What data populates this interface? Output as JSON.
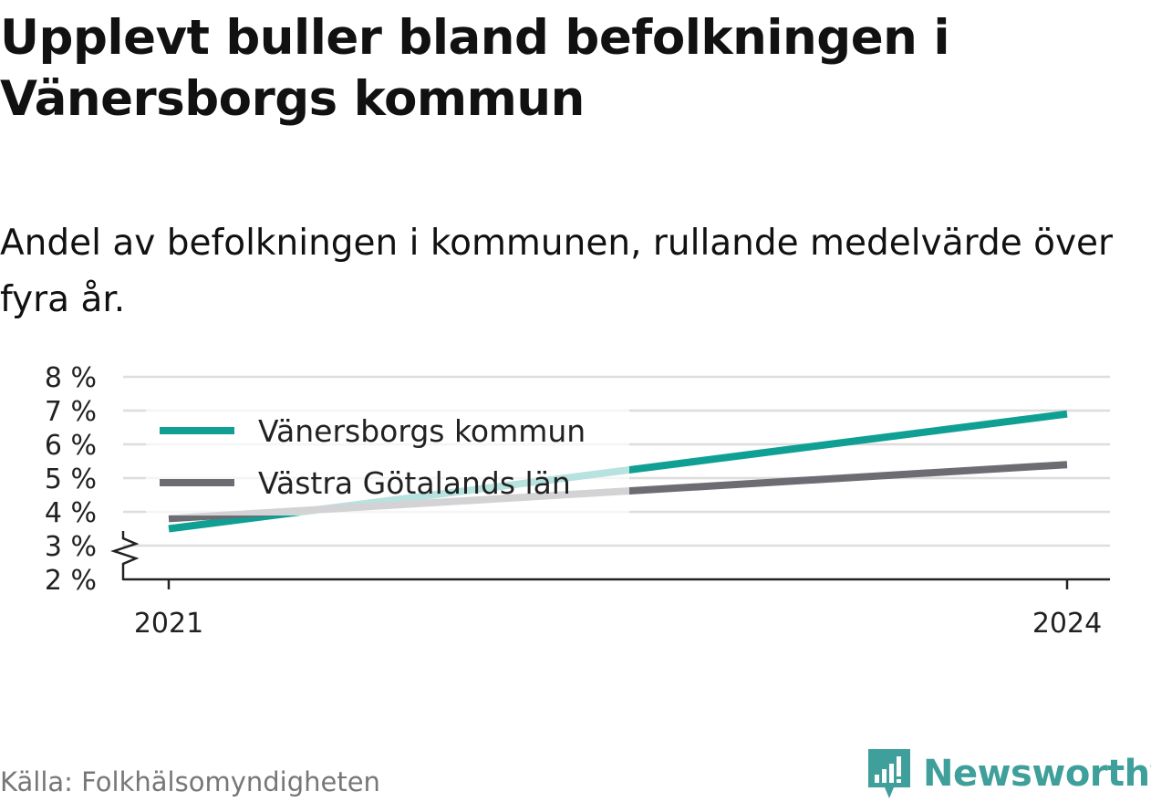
{
  "title": "Upplevt buller bland befolkningen i Vänersborgs kommun",
  "subtitle": "Andel av befolkningen i kommunen, rullande medelvärde över fyra år.",
  "source": "Källa: Folkhälsomyndigheten",
  "brand": "Newsworthy",
  "colors": {
    "accent": "#0f9f93",
    "secondary": "#6d6c72",
    "grid": "#dddddd",
    "brand": "#3f9f9a"
  },
  "chart_data": {
    "type": "line",
    "x": [
      2021,
      2024
    ],
    "x_tick_labels": [
      "2021",
      "2024"
    ],
    "y_ticks": [
      2,
      3,
      4,
      5,
      6,
      7,
      8
    ],
    "y_tick_labels": [
      "2 %",
      "3 %",
      "4 %",
      "5 %",
      "6 %",
      "7 %",
      "8 %"
    ],
    "ylim": [
      2,
      8
    ],
    "y_axis_break": true,
    "grid": true,
    "legend_position": "top-left",
    "series": [
      {
        "name": "Vänersborgs kommun",
        "color": "#0f9f93",
        "values": [
          3.5,
          6.9
        ]
      },
      {
        "name": "Västra Götalands län",
        "color": "#6d6c72",
        "values": [
          3.8,
          5.4
        ]
      }
    ]
  }
}
